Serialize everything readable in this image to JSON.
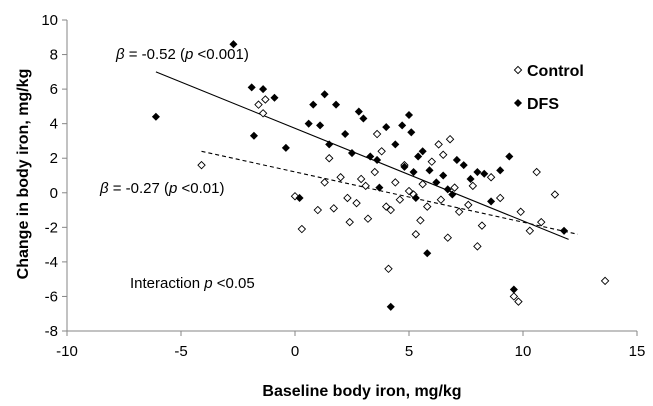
{
  "chart_data": {
    "type": "scatter",
    "xlabel": "Baseline body iron, mg/kg",
    "ylabel": "Change in body iron, mg/kg",
    "xlim": [
      -10,
      15
    ],
    "ylim": [
      -8,
      10
    ],
    "xticks": [
      -10,
      -5,
      0,
      5,
      10,
      15
    ],
    "yticks": [
      -8,
      -6,
      -4,
      -2,
      0,
      2,
      4,
      6,
      8,
      10
    ],
    "x_tick_labels": [
      "-10",
      "-5",
      "0",
      "5",
      "10",
      "15"
    ],
    "y_tick_labels": [
      "-8",
      "-6",
      "-4",
      "-2",
      "0",
      "2",
      "4",
      "6",
      "8",
      "10"
    ],
    "grid": false,
    "legend_position": "top-right",
    "series": [
      {
        "name": "Control",
        "marker": "open-diamond",
        "color": "#000000",
        "points": [
          [
            -4.1,
            1.6
          ],
          [
            -1.6,
            5.1
          ],
          [
            -1.4,
            4.6
          ],
          [
            -1.3,
            5.4
          ],
          [
            0.0,
            -0.2
          ],
          [
            0.3,
            -2.1
          ],
          [
            1.0,
            -1.0
          ],
          [
            1.3,
            0.6
          ],
          [
            1.5,
            2.0
          ],
          [
            1.7,
            -0.9
          ],
          [
            2.0,
            0.9
          ],
          [
            2.3,
            -0.3
          ],
          [
            2.4,
            -1.7
          ],
          [
            2.7,
            -0.6
          ],
          [
            2.9,
            0.8
          ],
          [
            3.1,
            0.4
          ],
          [
            3.2,
            -1.5
          ],
          [
            3.5,
            1.2
          ],
          [
            3.6,
            3.4
          ],
          [
            3.8,
            2.4
          ],
          [
            4.0,
            -0.8
          ],
          [
            4.1,
            -4.4
          ],
          [
            4.2,
            -1.0
          ],
          [
            4.4,
            0.6
          ],
          [
            4.6,
            -0.4
          ],
          [
            4.8,
            1.6
          ],
          [
            5.0,
            0.1
          ],
          [
            5.2,
            -0.1
          ],
          [
            5.3,
            -2.4
          ],
          [
            5.5,
            -1.6
          ],
          [
            5.6,
            0.5
          ],
          [
            5.8,
            -0.8
          ],
          [
            6.0,
            1.8
          ],
          [
            6.3,
            2.8
          ],
          [
            6.4,
            -0.4
          ],
          [
            6.5,
            2.2
          ],
          [
            6.7,
            -2.6
          ],
          [
            6.8,
            3.1
          ],
          [
            7.0,
            0.3
          ],
          [
            7.2,
            -1.1
          ],
          [
            7.6,
            -0.7
          ],
          [
            7.8,
            0.4
          ],
          [
            8.0,
            -3.1
          ],
          [
            8.2,
            -1.9
          ],
          [
            8.6,
            0.9
          ],
          [
            9.0,
            -0.3
          ],
          [
            9.6,
            -6.0
          ],
          [
            9.8,
            -6.3
          ],
          [
            9.9,
            -1.1
          ],
          [
            10.3,
            -2.2
          ],
          [
            10.6,
            1.2
          ],
          [
            10.8,
            -1.7
          ],
          [
            11.4,
            -0.1
          ],
          [
            13.6,
            -5.1
          ]
        ]
      },
      {
        "name": "DFS",
        "marker": "filled-diamond",
        "color": "#000000",
        "points": [
          [
            -6.1,
            4.4
          ],
          [
            -2.7,
            8.6
          ],
          [
            -1.9,
            6.1
          ],
          [
            -1.8,
            3.3
          ],
          [
            -1.4,
            6.0
          ],
          [
            -0.9,
            5.5
          ],
          [
            -0.4,
            2.6
          ],
          [
            0.2,
            -0.3
          ],
          [
            0.6,
            4.0
          ],
          [
            0.8,
            5.1
          ],
          [
            1.1,
            3.9
          ],
          [
            1.3,
            5.7
          ],
          [
            1.5,
            2.8
          ],
          [
            1.8,
            5.1
          ],
          [
            2.2,
            3.4
          ],
          [
            2.5,
            2.3
          ],
          [
            2.8,
            4.7
          ],
          [
            3.0,
            4.3
          ],
          [
            3.3,
            2.1
          ],
          [
            3.6,
            1.9
          ],
          [
            3.7,
            0.3
          ],
          [
            4.0,
            3.8
          ],
          [
            4.2,
            -6.6
          ],
          [
            4.4,
            2.8
          ],
          [
            4.7,
            3.9
          ],
          [
            4.8,
            1.5
          ],
          [
            5.0,
            4.5
          ],
          [
            5.1,
            3.5
          ],
          [
            5.2,
            1.2
          ],
          [
            5.3,
            -0.3
          ],
          [
            5.4,
            2.1
          ],
          [
            5.6,
            2.4
          ],
          [
            5.8,
            -3.5
          ],
          [
            5.9,
            1.3
          ],
          [
            6.2,
            0.6
          ],
          [
            6.5,
            1.0
          ],
          [
            6.7,
            0.2
          ],
          [
            6.9,
            -0.1
          ],
          [
            7.1,
            1.9
          ],
          [
            7.4,
            1.6
          ],
          [
            7.7,
            0.8
          ],
          [
            8.0,
            1.2
          ],
          [
            8.3,
            1.1
          ],
          [
            8.6,
            -0.5
          ],
          [
            9.0,
            1.3
          ],
          [
            9.4,
            2.1
          ],
          [
            9.6,
            -5.6
          ],
          [
            11.8,
            -2.2
          ]
        ]
      }
    ],
    "fit_lines": [
      {
        "group": "DFS",
        "style": "solid",
        "x": [
          -6.1,
          12.0
        ],
        "y": [
          7.0,
          -2.7
        ]
      },
      {
        "group": "Control",
        "style": "dashed",
        "x": [
          -4.1,
          12.4
        ],
        "y": [
          2.4,
          -2.4
        ]
      }
    ],
    "annotations": {
      "dfs_fit": {
        "beta_symbol": "β",
        "beta_text": " = -0.52 (",
        "p_symbol": "p",
        "p_text": " <0.001)"
      },
      "control_fit": {
        "beta_symbol": "β",
        "beta_text": " = -0.27 (",
        "p_symbol": "p",
        "p_text": " <0.01)"
      },
      "interaction": {
        "text": "Interaction ",
        "p_symbol": "p",
        "p_text": " <0.05"
      }
    }
  }
}
